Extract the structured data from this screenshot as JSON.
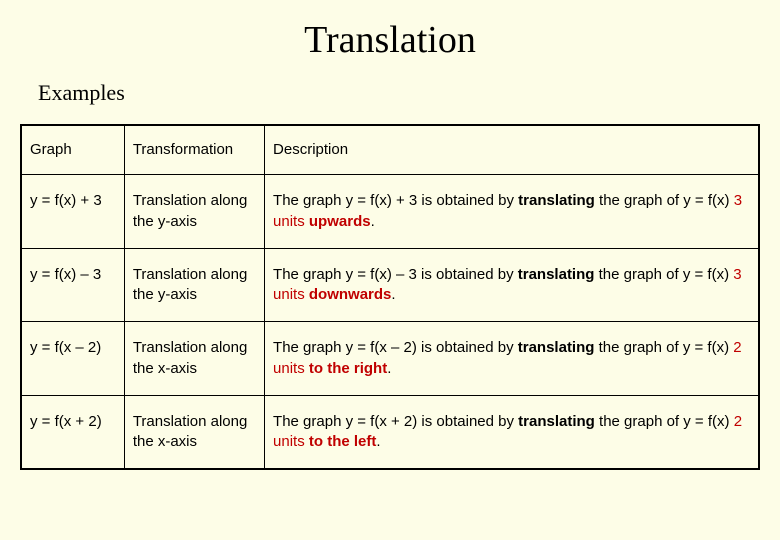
{
  "title": "Translation",
  "subtitle": "Examples",
  "background_color": "#fdfde7",
  "text_color": "#000000",
  "highlight_color": "#c00000",
  "border_color": "#000000",
  "title_fontsize": 38,
  "subtitle_fontsize": 22,
  "cell_fontsize": 15,
  "column_widths_pct": [
    14,
    19,
    67
  ],
  "columns": [
    "Graph",
    "Transformation",
    "Description"
  ],
  "rows": [
    {
      "graph": "y = f(x) + 3",
      "transformation": "Translation along the y-axis",
      "desc_prefix": "The graph  y = f(x) + 3  is obtained by ",
      "verb": "translating",
      "desc_mid": " the graph of  y = f(x)  ",
      "amount": "3 units ",
      "direction": "upwards",
      "desc_suffix": "."
    },
    {
      "graph": "y = f(x) – 3",
      "transformation": "Translation along the y-axis",
      "desc_prefix": "The graph  y = f(x) – 3  is obtained by ",
      "verb": "translating",
      "desc_mid": " the graph of  y = f(x)  ",
      "amount": "3 units ",
      "direction": "downwards",
      "desc_suffix": "."
    },
    {
      "graph": "y = f(x – 2)",
      "transformation": "Translation along the x-axis",
      "desc_prefix": "The graph  y = f(x – 2)  is obtained by ",
      "verb": "translating",
      "desc_mid": " the graph of  y = f(x)  ",
      "amount": "2 units",
      "direction": " to the right",
      "desc_suffix": "."
    },
    {
      "graph": "y = f(x + 2)",
      "transformation": "Translation along the x-axis",
      "desc_prefix": "The graph  y = f(x + 2)  is obtained by ",
      "verb": "translating",
      "desc_mid": " the graph of  y = f(x)  ",
      "amount": "2 units",
      "direction": " to the left",
      "desc_suffix": "."
    }
  ]
}
